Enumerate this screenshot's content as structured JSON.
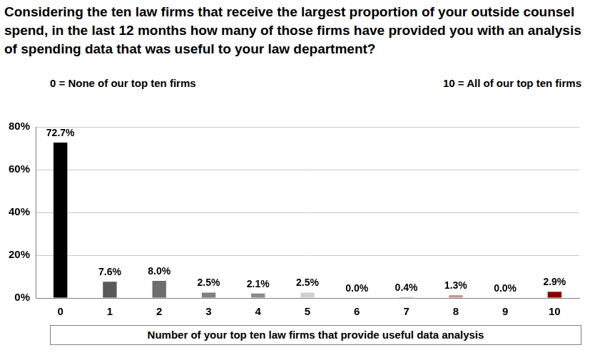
{
  "chart_data": {
    "type": "bar",
    "title": "Considering the ten law firms that receive the largest proportion of your outside counsel spend, in the last 12 months how many of those firms have provided you with an analysis of spending data that was useful to your law department?",
    "annotations": [
      "0 = None of our top ten firms",
      "10 = All of our top ten firms"
    ],
    "x_label": "Number of your top ten law firms that provide useful data analysis",
    "categories": [
      "0",
      "1",
      "2",
      "3",
      "4",
      "5",
      "6",
      "7",
      "8",
      "9",
      "10"
    ],
    "values": [
      72.7,
      7.6,
      8.0,
      2.5,
      2.1,
      2.5,
      0.0,
      0.4,
      1.3,
      0.0,
      2.9
    ],
    "value_labels": [
      "72.7%",
      "7.6%",
      "8.0%",
      "2.5%",
      "2.1%",
      "2.5%",
      "0.0%",
      "0.4%",
      "1.3%",
      "0.0%",
      "2.9%"
    ],
    "colors": [
      "#000000",
      "#595959",
      "#6e6e6e",
      "#7f7f7f",
      "#8c8c8c",
      "#d0d0d0",
      "#bfbfbf",
      "#d9a8a8",
      "#c99494",
      "#b07070",
      "#8b0000"
    ],
    "ylim": [
      0,
      80
    ],
    "yticks": [
      {
        "value": 0,
        "label": "0%"
      },
      {
        "value": 20,
        "label": "20%"
      },
      {
        "value": 40,
        "label": "40%"
      },
      {
        "value": 60,
        "label": "60%"
      },
      {
        "value": 80,
        "label": "80%"
      }
    ],
    "grid": true,
    "data_labels": true
  }
}
